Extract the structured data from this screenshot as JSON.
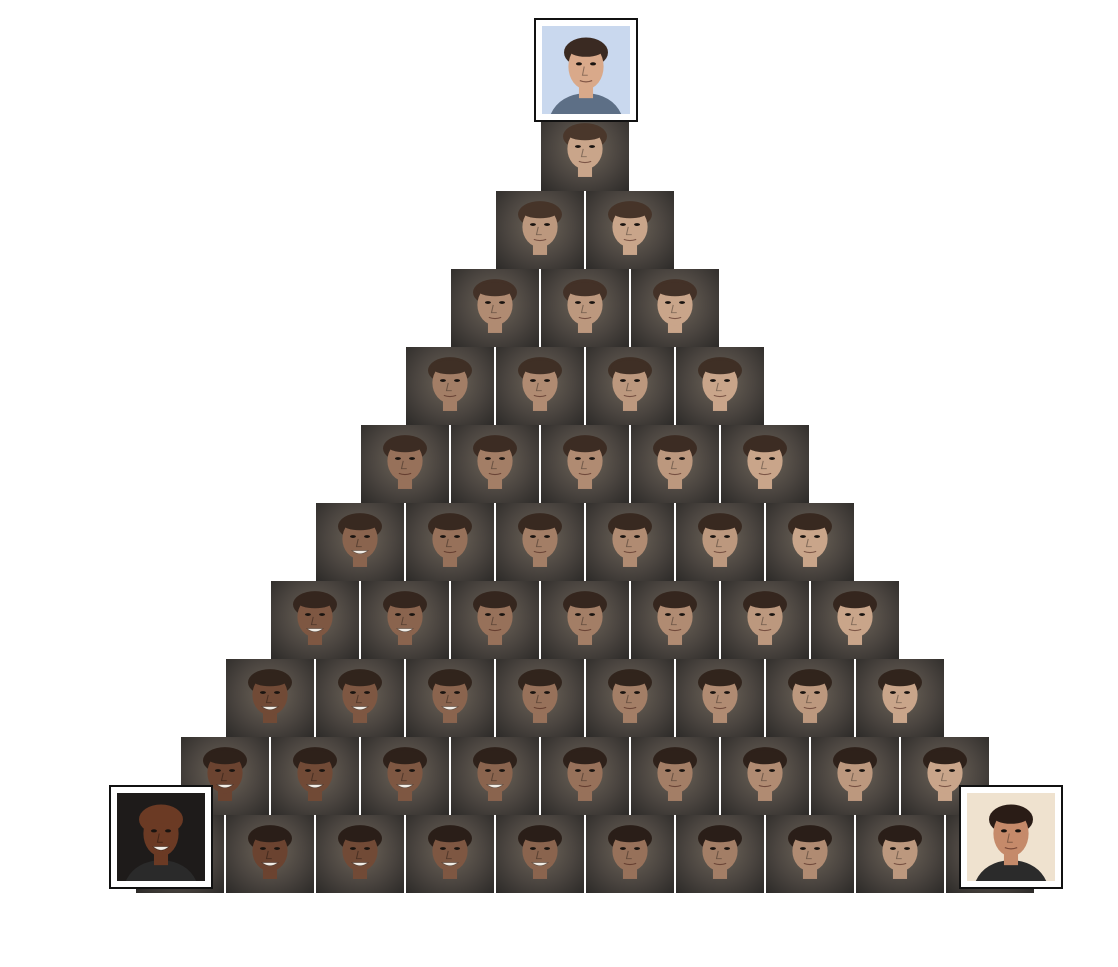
{
  "figure": {
    "rows": 10,
    "anchors": [
      {
        "id": "top",
        "skin": "#d9a98a",
        "hair": "#3a2a22",
        "bg": "#c9d8ee",
        "shirt": "#5d6f86"
      },
      {
        "id": "bottom-left",
        "skin": "#6b3a24",
        "hair": "#6b3a24",
        "bg": "#1e1b1a",
        "shirt": "#2a2a2a"
      },
      {
        "id": "bottom-right",
        "skin": "#c58a6a",
        "hair": "#2a1c16",
        "bg": "#efe2cf",
        "shirt": "#2b2b2b"
      }
    ],
    "colors": {
      "frame": "#111111",
      "tile_bg": "#4b4540",
      "tile_bg_dark": "#2c2a28",
      "skin_light": "#c9a58a",
      "skin_dark": "#6b4330",
      "hair_light": "#4a372b",
      "hair_dark": "#2a1e18"
    }
  }
}
